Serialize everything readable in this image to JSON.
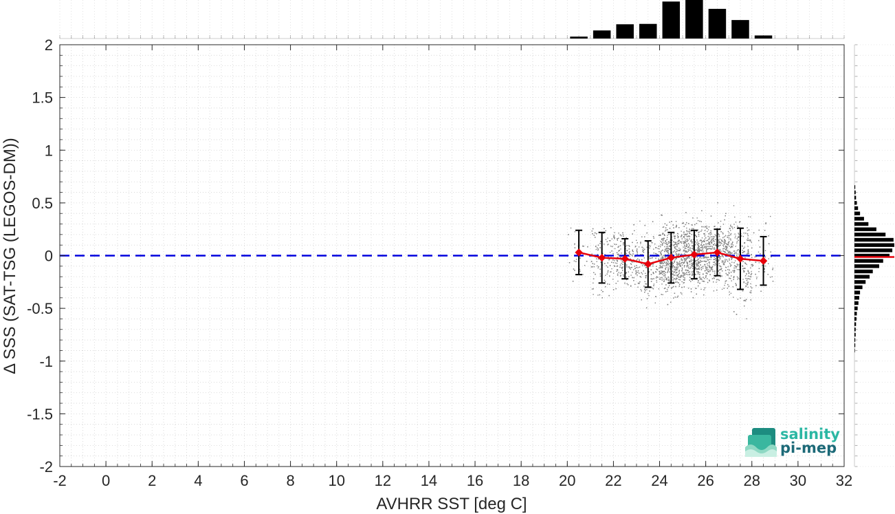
{
  "chart_data": {
    "type": "scatter",
    "xlabel": "AVHRR SST [deg C]",
    "ylabel": "Δ SSS (SAT-TSG (LEGOS-DM))",
    "xlim": [
      -2,
      32
    ],
    "ylim": [
      -2,
      2
    ],
    "xticks": [
      "-2",
      "0",
      "2",
      "4",
      "6",
      "8",
      "10",
      "12",
      "14",
      "16",
      "18",
      "20",
      "22",
      "24",
      "26",
      "28",
      "30",
      "32"
    ],
    "yticks": [
      "2",
      "1.5",
      "1",
      "0.5",
      "0",
      "-0.5",
      "-1",
      "-1.5",
      "-2"
    ],
    "grid": true,
    "reference_line": {
      "y": 0,
      "color": "#0000dd",
      "style": "dashed"
    },
    "scatter_cloud": {
      "color": "#808080",
      "x_range": [
        20.0,
        28.9
      ],
      "y_range": [
        -0.9,
        0.8
      ]
    },
    "binned_mean": {
      "color": "#e8000b",
      "x": [
        20.5,
        21.5,
        22.5,
        23.5,
        24.5,
        25.5,
        26.5,
        27.5,
        28.5
      ],
      "mean": [
        0.03,
        -0.02,
        -0.03,
        -0.08,
        -0.02,
        0.01,
        0.03,
        -0.03,
        -0.05
      ],
      "std": [
        0.21,
        0.24,
        0.19,
        0.22,
        0.24,
        0.23,
        0.22,
        0.29,
        0.23
      ]
    },
    "top_histogram": {
      "bin_centers": [
        20.5,
        21.5,
        22.5,
        23.5,
        24.5,
        25.5,
        26.5,
        27.5,
        28.5
      ],
      "relative_counts": [
        0.05,
        0.21,
        0.37,
        0.38,
        0.96,
        1.0,
        0.77,
        0.48,
        0.08
      ]
    },
    "right_histogram": {
      "bin_centers": [
        0.65,
        0.6,
        0.55,
        0.5,
        0.45,
        0.4,
        0.35,
        0.3,
        0.25,
        0.2,
        0.15,
        0.1,
        0.05,
        0.0,
        -0.05,
        -0.1,
        -0.15,
        -0.2,
        -0.25,
        -0.3,
        -0.35,
        -0.4,
        -0.45,
        -0.5,
        -0.55,
        -0.6,
        -0.65,
        -0.7,
        -0.75,
        -0.8,
        -0.85,
        -0.9
      ],
      "relative_counts": [
        0.02,
        0.03,
        0.04,
        0.06,
        0.09,
        0.14,
        0.24,
        0.35,
        0.55,
        0.78,
        0.98,
        1.0,
        0.95,
        0.88,
        0.72,
        0.62,
        0.46,
        0.38,
        0.28,
        0.2,
        0.14,
        0.12,
        0.1,
        0.08,
        0.06,
        0.05,
        0.04,
        0.03,
        0.03,
        0.02,
        0.02,
        0.01
      ],
      "mean_line": {
        "y": 0.0,
        "color": "#e8000b"
      }
    }
  },
  "logo": {
    "line1": "salinity",
    "line2": "pi-mep"
  }
}
